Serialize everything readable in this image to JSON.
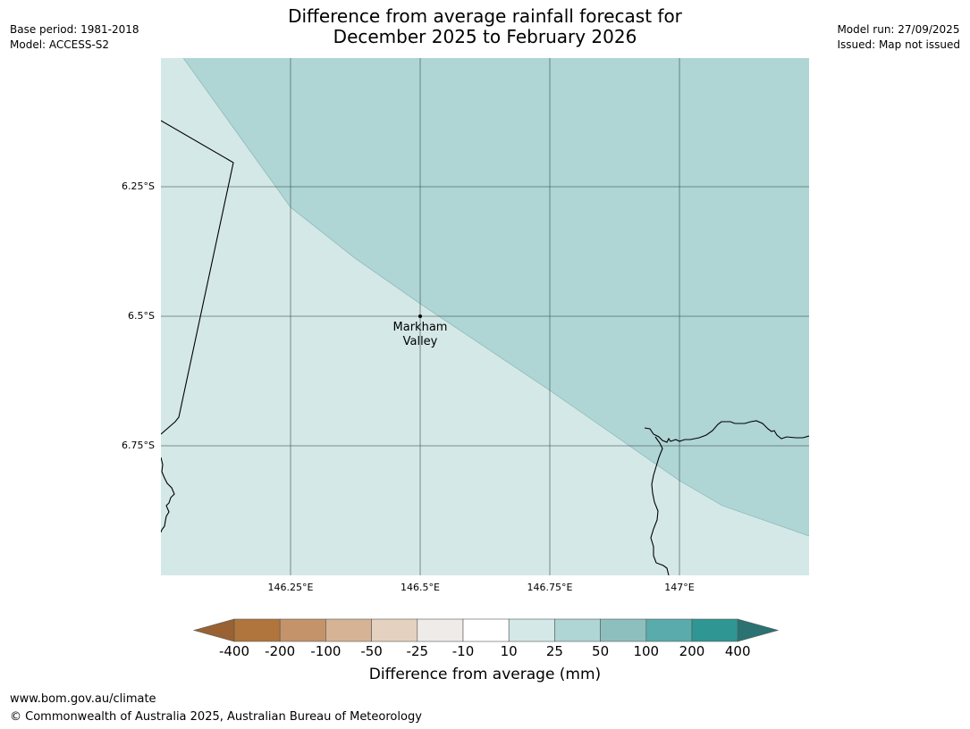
{
  "header": {
    "title_line1": "Difference from average rainfall forecast for",
    "title_line2": "December 2025 to February 2026",
    "base_period": "Base period: 1981-2018",
    "model": "Model: ACCESS-S2",
    "model_run": "Model run: 27/09/2025",
    "issued": "Issued: Map not issued"
  },
  "map": {
    "lat_labels": [
      "6.25°S",
      "6.5°S",
      "6.75°S"
    ],
    "lon_labels": [
      "146.25°E",
      "146.5°E",
      "146.75°E",
      "147°E"
    ],
    "place": {
      "name_line1": "Markham",
      "name_line2": "Valley"
    },
    "colors": {
      "low_band": "#d4e8e7",
      "high_band": "#afd5d5",
      "grid": "#3a4a4a",
      "coast": "#000000"
    },
    "region_categories": [
      "10 to 25",
      "25 to 50"
    ]
  },
  "colorbar": {
    "ticks": [
      "-400",
      "-200",
      "-100",
      "-50",
      "-25",
      "-10",
      "10",
      "25",
      "50",
      "100",
      "200",
      "400"
    ],
    "colors": [
      "#9a6232",
      "#b0753c",
      "#c4936a",
      "#d6b394",
      "#e5d1bf",
      "#efebe8",
      "#ffffff",
      "#d4e8e7",
      "#afd5d5",
      "#8ebfbf",
      "#5aabab",
      "#2f9693",
      "#2a7372"
    ],
    "title": "Difference from average (mm)"
  },
  "footer": {
    "url": "www.bom.gov.au/climate",
    "copyright": "© Commonwealth of Australia 2025, Australian Bureau of Meteorology"
  }
}
